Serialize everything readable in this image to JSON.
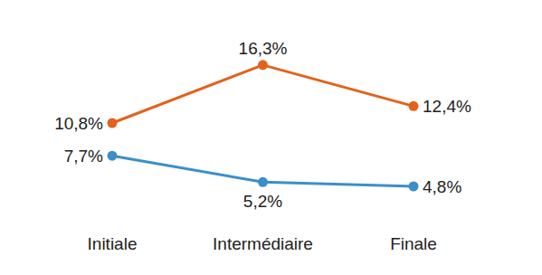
{
  "chart_data": {
    "type": "line",
    "categories": [
      "Initiale",
      "Intermédiaire",
      "Finale"
    ],
    "series": [
      {
        "color": "#e3621c",
        "marker": "circle",
        "values": [
          10.8,
          16.3,
          12.4
        ],
        "value_labels": [
          "10,8%",
          "16,3%",
          "12,4%"
        ]
      },
      {
        "color": "#3a8fc9",
        "marker": "circle",
        "values": [
          7.7,
          5.2,
          4.8
        ],
        "value_labels": [
          "7,7%",
          "5,2%",
          "4,8%"
        ]
      }
    ],
    "ylim": [
      0,
      18
    ],
    "grid": false,
    "data_labels": true,
    "tick_labels": "x"
  }
}
